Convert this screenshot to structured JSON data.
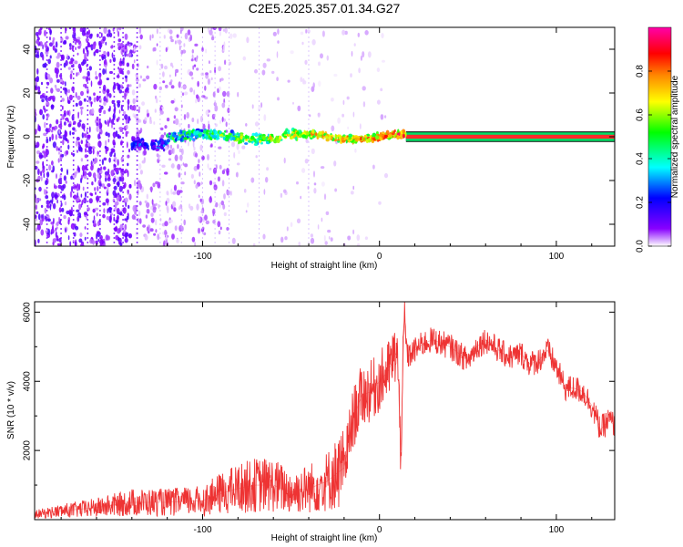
{
  "title": "C2E5.2025.357.01.34.G27",
  "chart_data": [
    {
      "type": "heatmap",
      "title": "C2E5.2025.357.01.34.G27",
      "xlabel": "Height of straight line (km)",
      "ylabel": "Frequency (Hz)",
      "xlim": [
        -195,
        133
      ],
      "ylim": [
        -50,
        50
      ],
      "x_ticks": [
        -100,
        0,
        100
      ],
      "y_ticks": [
        -40,
        -20,
        0,
        20,
        40
      ],
      "colorbar": {
        "label": "Normalized spectral amplitude",
        "range": [
          0,
          1
        ],
        "ticks": [
          0.0,
          0.2,
          0.4,
          0.6,
          0.8
        ],
        "colormap": [
          "#ffffff",
          "#8800ff",
          "#0000ff",
          "#00ffff",
          "#00ff00",
          "#ffff00",
          "#ff8800",
          "#ff0000",
          "#ff00aa"
        ]
      },
      "signal_band": {
        "center_hz": 0,
        "half_width_hz": 2,
        "starts_at_km": -140,
        "clean_from_km": 15
      },
      "noise_region_km": [
        -195,
        -85
      ]
    },
    {
      "type": "line",
      "xlabel": "Height of straight line (km)",
      "ylabel": "SNR (10 * v/v)",
      "xlim": [
        -195,
        133
      ],
      "ylim": [
        0,
        6300
      ],
      "x_ticks": [
        -100,
        0,
        100
      ],
      "y_ticks": [
        2000,
        4000,
        6000
      ],
      "series": [
        {
          "name": "SNR",
          "color": "#ee3333",
          "x": [
            -195,
            -180,
            -160,
            -140,
            -120,
            -100,
            -90,
            -80,
            -70,
            -60,
            -50,
            -40,
            -30,
            -20,
            -15,
            -10,
            -5,
            0,
            5,
            10,
            12,
            14,
            16,
            20,
            25,
            30,
            35,
            40,
            45,
            50,
            55,
            60,
            65,
            70,
            75,
            80,
            85,
            90,
            95,
            100,
            105,
            110,
            115,
            120,
            125,
            130,
            133
          ],
          "y": [
            150,
            250,
            350,
            500,
            500,
            550,
            750,
            900,
            1000,
            1000,
            800,
            900,
            1100,
            1500,
            2900,
            3600,
            3700,
            4000,
            4300,
            4900,
            2000,
            5700,
            4700,
            4900,
            5100,
            5200,
            5100,
            5000,
            4800,
            4600,
            5000,
            5200,
            5000,
            4800,
            4700,
            4800,
            4500,
            4600,
            4900,
            4400,
            3800,
            3800,
            3700,
            3300,
            2600,
            2900,
            2700
          ]
        }
      ]
    }
  ]
}
